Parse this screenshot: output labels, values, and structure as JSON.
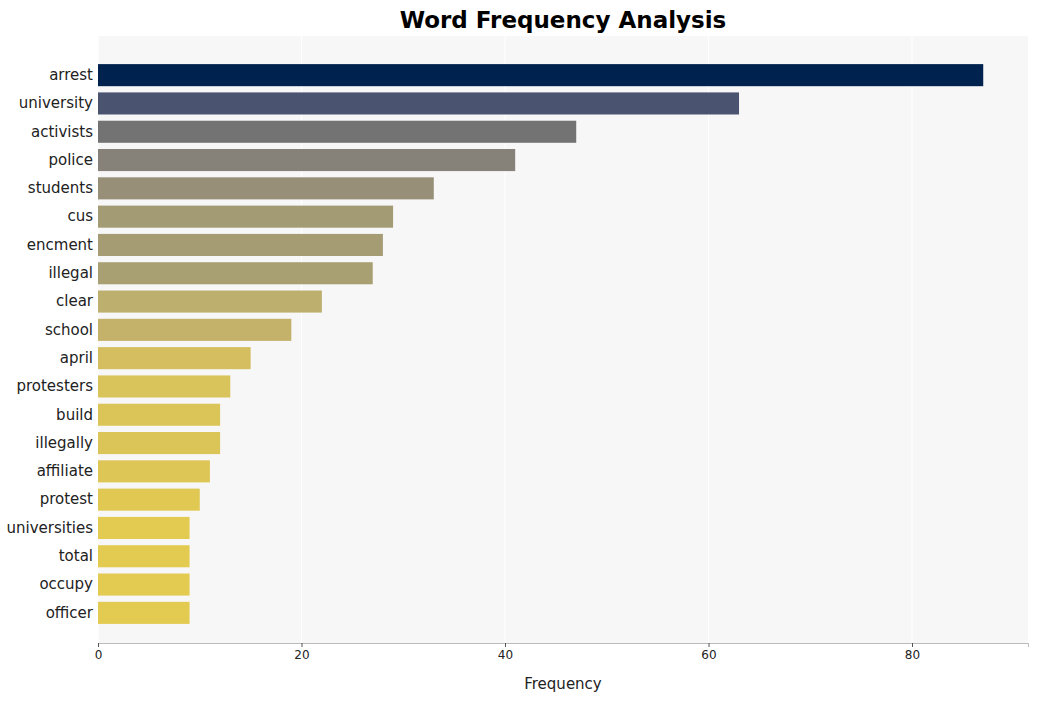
{
  "chart_data": {
    "type": "bar",
    "orientation": "horizontal",
    "title": "Word Frequency Analysis",
    "x_label": "Frequency",
    "categories": [
      "arrest",
      "university",
      "activists",
      "police",
      "students",
      "cus",
      "encment",
      "illegal",
      "clear",
      "school",
      "april",
      "protesters",
      "build",
      "illegally",
      "affiliate",
      "protest",
      "universities",
      "total",
      "occupy",
      "officer"
    ],
    "values": [
      87,
      63,
      47,
      41,
      33,
      29,
      28,
      27,
      22,
      19,
      15,
      13,
      12,
      12,
      11,
      10,
      9,
      9,
      9,
      9
    ],
    "colors": [
      "#00224e",
      "#4a5470",
      "#747373",
      "#868279",
      "#978f78",
      "#a39b74",
      "#a59c74",
      "#a89f73",
      "#bdaf6e",
      "#c5b26a",
      "#d4be60",
      "#d9c35b",
      "#dcc558",
      "#dcc558",
      "#dec656",
      "#e0c853",
      "#e3cb51",
      "#e3cb51",
      "#e3cb51",
      "#e3cb51"
    ],
    "xlim": [
      0,
      91.4
    ],
    "xticks": [
      0,
      20,
      40,
      60,
      80
    ],
    "grid": true
  }
}
